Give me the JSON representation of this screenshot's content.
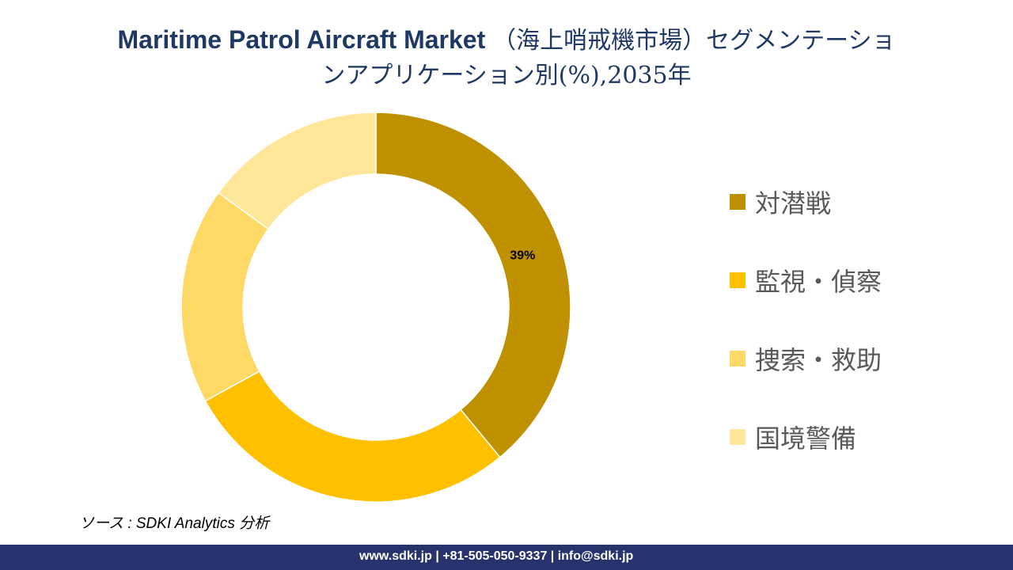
{
  "title": {
    "line1_en": "Maritime Patrol Aircraft Market ",
    "line1_jp": "（海上哨戒機市場）セグメンテーショ",
    "line2": "ンアプリケーション別(%),2035年"
  },
  "chart_data": {
    "type": "donut",
    "title": "Maritime Patrol Aircraft Market （海上哨戒機市場）セグメンテーションアプリケーション別(%),2035年",
    "categories": [
      "対潜戦",
      "監視・偵察",
      "捜索・救助",
      "国境警備"
    ],
    "values": [
      39,
      28,
      18,
      15
    ],
    "colors": [
      "#BF9000",
      "#FFC000",
      "#FFD966",
      "#FFE699"
    ],
    "data_labels": [
      "39%",
      null,
      null,
      null
    ],
    "start": "top, clockwise",
    "legend_position": "right"
  },
  "source": "ソース : SDKI Analytics  分析",
  "footer": "www.sdki.jp | +81-505-050-9337 | info@sdki.jp"
}
